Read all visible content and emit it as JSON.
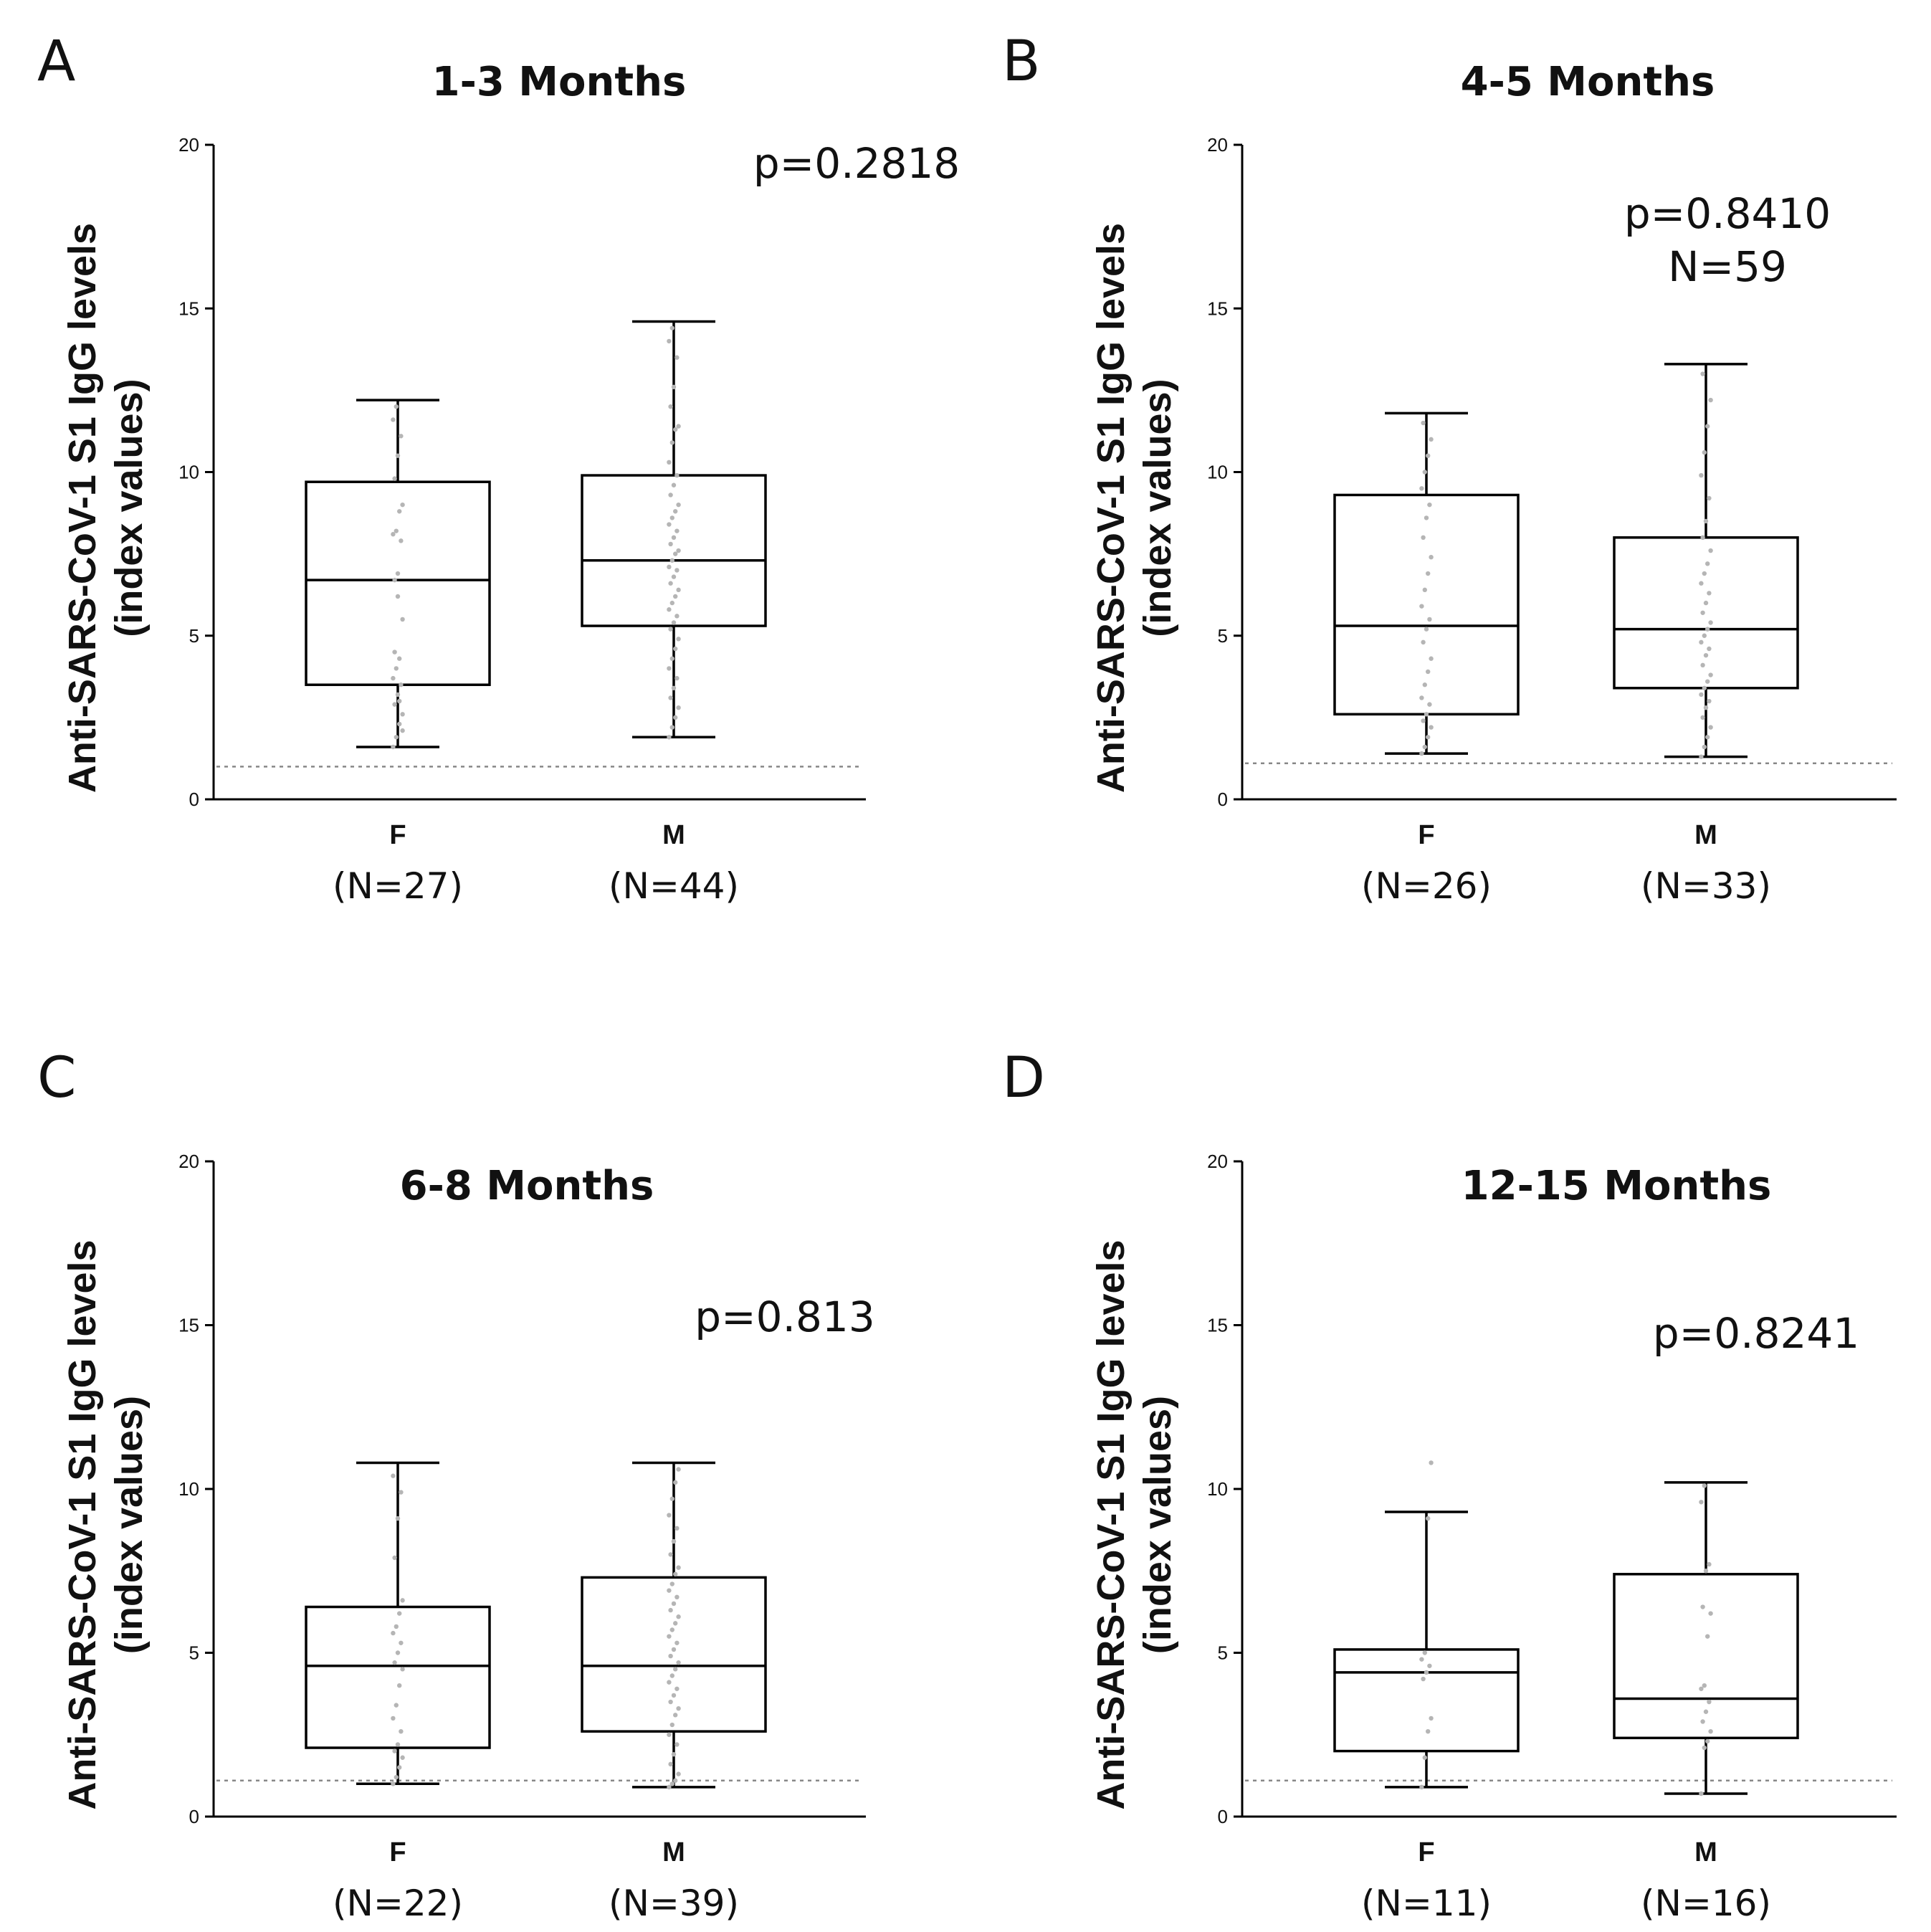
{
  "chart_data": [
    {
      "type": "box",
      "panel": "A",
      "title": "1-3 Months",
      "ylabel": [
        "Anti-SARS-CoV-1 S1 IgG levels",
        "(index values)"
      ],
      "ylim": [
        0,
        20
      ],
      "yticks": [
        0,
        5,
        10,
        15,
        20
      ],
      "reference_line": 1,
      "annotations": [
        "p=0.2818"
      ],
      "groups": [
        {
          "category": "F",
          "n_label": "(N=27)",
          "whisker_low": 1.6,
          "q1": 3.5,
          "median": 6.7,
          "q3": 9.7,
          "whisker_high": 12.2,
          "points": [
            1.6,
            1.9,
            2.3,
            2.6,
            2.9,
            3.2,
            3.5,
            3.7,
            4.0,
            4.3,
            5.5,
            6.7,
            6.9,
            7.9,
            8.1,
            8.2,
            8.8,
            9.0,
            9.8,
            10.5,
            11.1,
            11.6,
            12.0,
            3.0,
            2.1,
            4.5,
            6.2
          ]
        },
        {
          "category": "M",
          "n_label": "(N=44)",
          "whisker_low": 1.9,
          "q1": 5.3,
          "median": 7.3,
          "q3": 9.9,
          "whisker_high": 14.6,
          "points": [
            1.9,
            2.2,
            2.5,
            2.8,
            3.1,
            3.4,
            3.7,
            4.0,
            4.3,
            4.6,
            4.9,
            5.2,
            5.4,
            5.6,
            5.8,
            6.0,
            6.2,
            6.4,
            6.6,
            6.8,
            7.0,
            7.1,
            7.3,
            7.5,
            7.6,
            7.8,
            8.0,
            8.2,
            8.4,
            8.6,
            8.8,
            9.0,
            9.3,
            9.6,
            9.9,
            10.3,
            10.9,
            11.3,
            11.4,
            12.0,
            12.6,
            13.5,
            14.0,
            14.4
          ]
        }
      ]
    },
    {
      "type": "box",
      "panel": "B",
      "title": "4-5 Months",
      "ylabel": [
        "Anti-SARS-CoV-1 S1 IgG levels",
        "(index values)"
      ],
      "ylim": [
        0,
        20
      ],
      "yticks": [
        0,
        5,
        10,
        15,
        20
      ],
      "reference_line": 1.1,
      "annotations": [
        "p=0.8410",
        "N=59"
      ],
      "groups": [
        {
          "category": "F",
          "n_label": "(N=26)",
          "whisker_low": 1.4,
          "q1": 2.6,
          "median": 5.3,
          "q3": 9.3,
          "whisker_high": 11.8,
          "points": [
            1.4,
            1.6,
            1.9,
            2.2,
            2.4,
            2.6,
            2.9,
            3.1,
            3.5,
            3.9,
            4.3,
            4.8,
            5.2,
            5.5,
            5.9,
            6.4,
            6.9,
            7.4,
            8.0,
            8.6,
            9.0,
            9.5,
            10.0,
            10.5,
            11.0,
            11.5
          ]
        },
        {
          "category": "M",
          "n_label": "(N=33)",
          "whisker_low": 1.3,
          "q1": 3.4,
          "median": 5.2,
          "q3": 8.0,
          "whisker_high": 13.3,
          "points": [
            1.3,
            1.6,
            1.9,
            2.2,
            2.5,
            2.8,
            3.0,
            3.2,
            3.4,
            3.6,
            3.8,
            4.1,
            4.4,
            4.6,
            4.8,
            5.0,
            5.2,
            5.4,
            5.7,
            6.0,
            6.3,
            6.6,
            6.9,
            7.2,
            7.6,
            8.0,
            8.5,
            9.2,
            9.9,
            10.6,
            11.4,
            12.2,
            13.0
          ]
        }
      ]
    },
    {
      "type": "box",
      "panel": "C",
      "title": "6-8 Months",
      "ylabel": [
        "Anti-SARS-CoV-1 S1 IgG levels",
        "(index values)"
      ],
      "ylim": [
        0,
        20
      ],
      "yticks": [
        0,
        5,
        10,
        15,
        20
      ],
      "reference_line": 1.1,
      "annotations": [
        "p=0.813"
      ],
      "groups": [
        {
          "category": "F",
          "n_label": "(N=22)",
          "whisker_low": 1.0,
          "q1": 2.1,
          "median": 4.6,
          "q3": 6.4,
          "whisker_high": 10.8,
          "points": [
            1.0,
            1.2,
            1.5,
            1.8,
            2.0,
            2.2,
            2.6,
            3.0,
            3.4,
            4.0,
            4.5,
            4.7,
            5.0,
            5.3,
            5.6,
            5.8,
            6.2,
            6.6,
            7.9,
            9.1,
            9.9,
            10.4
          ]
        },
        {
          "category": "M",
          "n_label": "(N=39)",
          "whisker_low": 0.9,
          "q1": 2.6,
          "median": 4.6,
          "q3": 7.3,
          "whisker_high": 10.8,
          "points": [
            0.9,
            1.0,
            1.1,
            1.3,
            1.6,
            1.9,
            2.2,
            2.5,
            2.8,
            3.1,
            3.3,
            3.5,
            3.7,
            3.9,
            4.1,
            4.3,
            4.5,
            4.7,
            4.9,
            5.1,
            5.3,
            5.5,
            5.7,
            5.9,
            6.1,
            6.3,
            6.5,
            6.7,
            6.9,
            7.1,
            7.4,
            7.6,
            8.0,
            8.4,
            8.8,
            9.2,
            9.7,
            10.2,
            10.6
          ]
        }
      ]
    },
    {
      "type": "box",
      "panel": "D",
      "title": "12-15 Months",
      "ylabel": [
        "Anti-SARS-CoV-1 S1 IgG levels",
        "(index values)"
      ],
      "ylim": [
        0,
        20
      ],
      "yticks": [
        0,
        5,
        10,
        15,
        20
      ],
      "reference_line": 1.1,
      "annotations": [
        "p=0.8241"
      ],
      "groups": [
        {
          "category": "F",
          "n_label": "(N=11)",
          "whisker_low": 0.9,
          "q1": 2.0,
          "median": 4.4,
          "q3": 5.1,
          "whisker_high": 9.3,
          "points": [
            0.9,
            1.8,
            2.6,
            3.0,
            4.2,
            4.4,
            4.6,
            4.8,
            5.0,
            9.1,
            10.8
          ]
        },
        {
          "category": "M",
          "n_label": "(N=16)",
          "whisker_low": 0.7,
          "q1": 2.4,
          "median": 3.6,
          "q3": 7.4,
          "whisker_high": 10.2,
          "points": [
            0.7,
            2.1,
            2.3,
            2.6,
            2.9,
            3.2,
            3.5,
            3.9,
            4.0,
            5.5,
            6.2,
            6.4,
            7.5,
            7.7,
            9.6,
            10.1
          ]
        }
      ]
    }
  ]
}
